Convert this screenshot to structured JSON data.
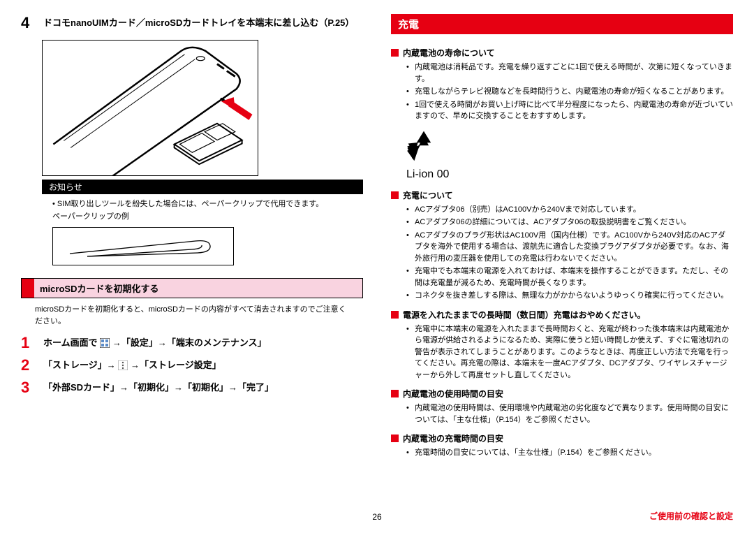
{
  "left": {
    "step4": {
      "num": "4",
      "text": "ドコモnanoUIMカード／microSDカードトレイを本端末に差し込む（P.25）"
    },
    "notice_label": "お知らせ",
    "notice_bullet": "SIM取り出しツールを紛失した場合には、ペーパークリップで代用できます。",
    "paperclip_caption": "ペーパークリップの例",
    "section_header": "microSDカードを初期化する",
    "warn_text": "microSDカードを初期化すると、microSDカードの内容がすべて消去されますのでご注意ください。",
    "step1": {
      "num": "1",
      "prefix": "ホーム画面で ",
      "mid": " →「設定」→「端末のメンテナンス」"
    },
    "step2": {
      "num": "2",
      "prefix": "「ストレージ」→ ",
      "mid": " →「ストレージ設定」"
    },
    "step3": {
      "num": "3",
      "text": "「外部SDカード」→「初期化」→「初期化」→「完了」"
    }
  },
  "right": {
    "header": "充電",
    "sec1_head": "内蔵電池の寿命について",
    "sec1_items": [
      "内蔵電池は消耗品です。充電を繰り返すごとに1回で使える時間が、次第に短くなっていきます。",
      "充電しながらテレビ視聴などを長時間行うと、内蔵電池の寿命が短くなることがあります。",
      "1回で使える時間がお買い上げ時に比べて半分程度になったら、内蔵電池の寿命が近づいていますので、早めに交換することをおすすめします。"
    ],
    "recycle_text": "Li-ion 00",
    "sec2_head": "充電について",
    "sec2_items": [
      "ACアダプタ06（別売）はAC100Vから240Vまで対応しています。",
      "ACアダプタ06の詳細については、ACアダプタ06の取扱説明書をご覧ください。",
      "ACアダプタのプラグ形状はAC100V用（国内仕様）です。AC100Vから240V対応のACアダプタを海外で使用する場合は、渡航先に適合した変換プラグアダプタが必要です。なお、海外旅行用の変圧器を使用しての充電は行わないでください。",
      "充電中でも本端末の電源を入れておけば、本端末を操作することができます。ただし、その間は充電量が減るため、充電時間が長くなります。",
      "コネクタを抜き差しする際は、無理な力がかからないようゆっくり確実に行ってください。"
    ],
    "sec3_head": "電源を入れたままでの長時間（数日間）充電はおやめください。",
    "sec3_items": [
      "充電中に本端末の電源を入れたままで長時間おくと、充電が終わった後本端末は内蔵電池から電源が供給されるようになるため、実際に使うと短い時間しか使えず、すぐに電池切れの警告が表示されてしまうことがあります。このようなときは、再度正しい方法で充電を行ってください。再充電の際は、本端末を一度ACアダプタ、DCアダプタ、ワイヤレスチャージャーから外して再度セットし直してください。"
    ],
    "sec4_head": "内蔵電池の使用時間の目安",
    "sec4_items": [
      "内蔵電池の使用時間は、使用環境や内蔵電池の劣化度などで異なります。使用時間の目安については、「主な仕様」（P.154）をご参照ください。"
    ],
    "sec5_head": "内蔵電池の充電時間の目安",
    "sec5_items": [
      "充電時間の目安については、「主な仕様」（P.154）をご参照ください。"
    ]
  },
  "page_number": "26",
  "footer_red": "ご使用前の確認と設定"
}
